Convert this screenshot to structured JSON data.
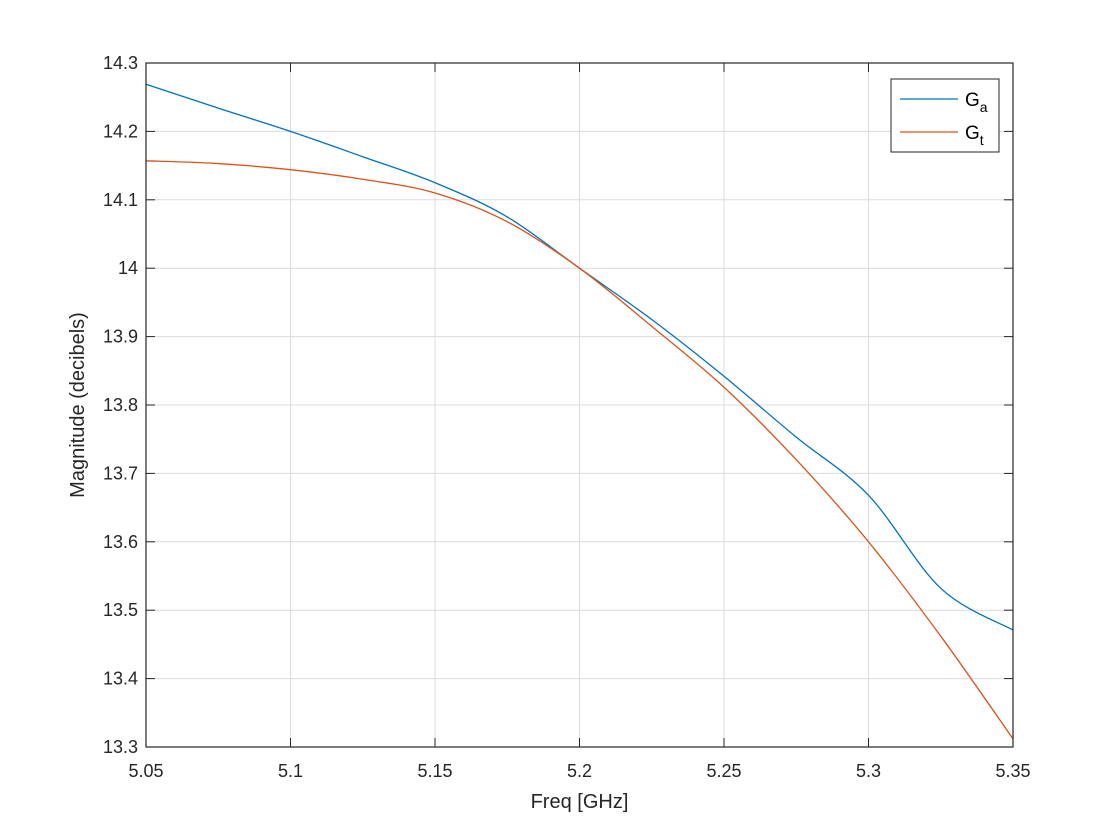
{
  "chart_data": {
    "type": "line",
    "title": "",
    "xlabel": "Freq [GHz]",
    "ylabel": "Magnitude (decibels)",
    "xlim": [
      5.05,
      5.35
    ],
    "ylim": [
      13.3,
      14.3
    ],
    "grid": true,
    "legend_position": "upper right",
    "x_ticks": [
      "5.05",
      "5.1",
      "5.15",
      "5.2",
      "5.25",
      "5.3",
      "5.35"
    ],
    "y_ticks": [
      "13.3",
      "13.4",
      "13.5",
      "13.6",
      "13.7",
      "13.8",
      "13.9",
      "14",
      "14.1",
      "14.2",
      "14.3"
    ],
    "x": [
      5.05,
      5.075,
      5.1,
      5.125,
      5.15,
      5.175,
      5.2,
      5.225,
      5.25,
      5.275,
      5.3,
      5.325,
      5.35
    ],
    "series": [
      {
        "name": "Ga",
        "label_main": "G",
        "label_sub": "a",
        "color": "#0072BD",
        "values": [
          14.269,
          14.234,
          14.2,
          14.163,
          14.125,
          14.075,
          14.0,
          13.925,
          13.842,
          13.753,
          13.668,
          13.532,
          13.471
        ]
      },
      {
        "name": "Gt",
        "label_main": "G",
        "label_sub": "t",
        "color": "#D95319",
        "values": [
          14.157,
          14.153,
          14.144,
          14.13,
          14.11,
          14.068,
          14.0,
          13.915,
          13.826,
          13.72,
          13.6,
          13.462,
          13.312
        ]
      }
    ]
  }
}
